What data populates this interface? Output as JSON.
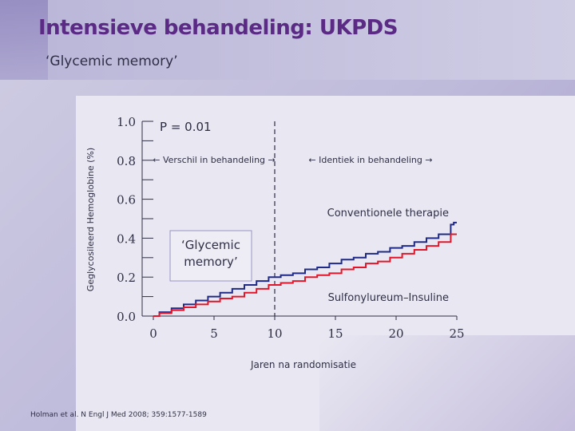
{
  "slide": {
    "title": "Intensieve behandeling: UKPDS",
    "subtitle": "‘Glycemic memory’",
    "citation": "Holman et al. N Engl J Med 2008; 359:1577-1589"
  },
  "colors": {
    "title": "#5a2a84",
    "conventional": "#1f2a86",
    "intensive": "#e0172a",
    "text": "#2e2e45"
  },
  "chart_data": {
    "type": "line",
    "xlabel": "Jaren na randomisatie",
    "ylabel": "Geglycosileerd Hemoglobine (%)",
    "xlim": [
      0,
      25
    ],
    "ylim": [
      0,
      1.0
    ],
    "x_ticks": [
      "0",
      "5",
      "10",
      "15",
      "20",
      "25"
    ],
    "x_tick_values": [
      0,
      5,
      10,
      15,
      20,
      25
    ],
    "y_ticks": [
      "0.0",
      "0.2",
      "0.4",
      "0.6",
      "0.8",
      "1.0"
    ],
    "y_tick_values": [
      0.0,
      0.2,
      0.4,
      0.6,
      0.8,
      1.0
    ],
    "grid": false,
    "annotations": {
      "p_value": "P = 0.01",
      "phase_1": "← Verschil in behandeling →",
      "phase_2": "← Identiek in behandeling →",
      "box_label": "‘Glycemic memory’",
      "series_upper_label": "Conventionele therapie",
      "series_lower_label": "Sulfonylureum–Insuline",
      "divider_x": 10
    },
    "series": [
      {
        "name": "Conventionele therapie",
        "color": "#1f2a86",
        "x": [
          0,
          1,
          2,
          3,
          4,
          5,
          6,
          7,
          8,
          9,
          10,
          11,
          12,
          13,
          14,
          15,
          16,
          17,
          18,
          19,
          20,
          21,
          22,
          23,
          24,
          24.5,
          24.5,
          25
        ],
        "y": [
          0.0,
          0.02,
          0.04,
          0.06,
          0.08,
          0.1,
          0.12,
          0.14,
          0.16,
          0.18,
          0.2,
          0.21,
          0.22,
          0.24,
          0.25,
          0.27,
          0.29,
          0.3,
          0.32,
          0.33,
          0.35,
          0.36,
          0.38,
          0.4,
          0.42,
          0.42,
          0.47,
          0.48
        ]
      },
      {
        "name": "Sulfonylureum–Insuline",
        "color": "#e0172a",
        "x": [
          0,
          1,
          2,
          3,
          4,
          5,
          6,
          7,
          8,
          9,
          10,
          11,
          12,
          13,
          14,
          15,
          16,
          17,
          18,
          19,
          20,
          21,
          22,
          23,
          24,
          25
        ],
        "y": [
          0.0,
          0.015,
          0.03,
          0.045,
          0.06,
          0.075,
          0.09,
          0.1,
          0.12,
          0.14,
          0.16,
          0.17,
          0.18,
          0.2,
          0.21,
          0.22,
          0.24,
          0.25,
          0.27,
          0.28,
          0.3,
          0.32,
          0.34,
          0.36,
          0.38,
          0.42
        ]
      }
    ]
  }
}
